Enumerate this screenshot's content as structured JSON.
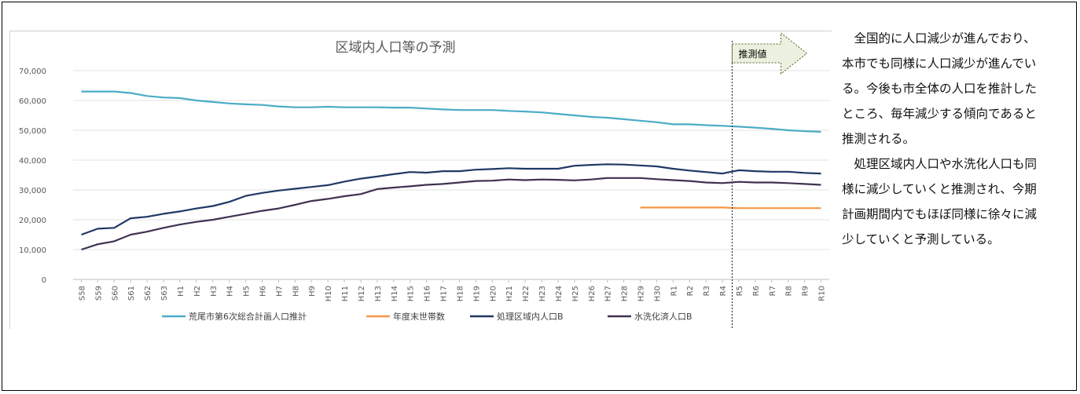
{
  "chart_data": {
    "type": "line",
    "title": "区域内人口等の予測",
    "xlabel": "",
    "ylabel": "",
    "ylim": [
      0,
      70000
    ],
    "yticks": [
      0,
      10000,
      20000,
      30000,
      40000,
      50000,
      60000,
      70000
    ],
    "ytick_labels": [
      "0",
      "10,000",
      "20,000",
      "30,000",
      "40,000",
      "50,000",
      "60,000",
      "70,000"
    ],
    "grid": true,
    "legend": "bottom",
    "categories": [
      "S58",
      "S59",
      "S60",
      "S61",
      "S62",
      "S63",
      "H1",
      "H2",
      "H3",
      "H4",
      "H5",
      "H6",
      "H7",
      "H8",
      "H9",
      "H10",
      "H11",
      "H12",
      "H13",
      "H14",
      "H15",
      "H16",
      "H17",
      "H18",
      "H19",
      "H20",
      "H21",
      "H22",
      "H23",
      "H24",
      "H25",
      "H26",
      "H27",
      "H28",
      "H29",
      "H30",
      "R1",
      "R2",
      "R3",
      "R4",
      "R5",
      "R6",
      "R7",
      "R8",
      "R9",
      "R10"
    ],
    "series": [
      {
        "name": "荒尾市第6次総合計画人口推計",
        "color": "#4bacc6",
        "values": [
          63000,
          63000,
          63000,
          62500,
          61500,
          61000,
          60800,
          60000,
          59500,
          59000,
          58700,
          58500,
          58000,
          57700,
          57700,
          57900,
          57700,
          57700,
          57700,
          57600,
          57600,
          57300,
          57000,
          56800,
          56800,
          56800,
          56500,
          56300,
          56000,
          55500,
          55000,
          54500,
          54200,
          53700,
          53200,
          52700,
          52000,
          52000,
          51700,
          51500,
          51200,
          50900,
          50500,
          50000,
          49700,
          49500
        ]
      },
      {
        "name": "年度末世帯数",
        "color": "#f79646",
        "values": [
          null,
          null,
          null,
          null,
          null,
          null,
          null,
          null,
          null,
          null,
          null,
          null,
          null,
          null,
          null,
          null,
          null,
          null,
          null,
          null,
          null,
          null,
          null,
          null,
          null,
          null,
          null,
          null,
          null,
          null,
          null,
          null,
          null,
          null,
          24100,
          24100,
          24100,
          24100,
          24100,
          24100,
          23900,
          23900,
          23900,
          23900,
          23900,
          23900
        ]
      },
      {
        "name": "処理区域内人口B",
        "color": "#1f3864",
        "values": [
          15000,
          17000,
          17300,
          20500,
          21000,
          22000,
          22800,
          23800,
          24600,
          26000,
          28000,
          29000,
          29800,
          30400,
          31000,
          31600,
          32800,
          33800,
          34500,
          35300,
          36000,
          35800,
          36300,
          36300,
          36800,
          37000,
          37300,
          37100,
          37100,
          37100,
          38100,
          38400,
          38600,
          38500,
          38200,
          37900,
          37100,
          36500,
          36000,
          35500,
          36600,
          36300,
          36100,
          36100,
          35700,
          35500
        ]
      },
      {
        "name": "水洗化済人口B",
        "color": "#403151",
        "values": [
          10000,
          11800,
          12800,
          15000,
          16000,
          17300,
          18400,
          19300,
          20000,
          21000,
          22000,
          23000,
          23800,
          25000,
          26300,
          27000,
          27900,
          28600,
          30300,
          30800,
          31200,
          31700,
          32000,
          32500,
          33000,
          33100,
          33500,
          33300,
          33500,
          33400,
          33200,
          33500,
          34000,
          34000,
          34000,
          33600,
          33300,
          33000,
          32500,
          32300,
          32700,
          32500,
          32500,
          32300,
          32000,
          31700
        ]
      }
    ],
    "annotation": {
      "label": "推測値",
      "position_category": "R5"
    }
  },
  "side_text": {
    "paragraph1": "全国的に人口減少が進んでおり、本市でも同様に人口減少が進んでいる。今後も市全体の人口を推計したところ、毎年減少する傾向であると推測される。",
    "paragraph2": "処理区域内人口や水洗化人口も同様に減少していくと推測され、今期計画期間内でもほぼ同様に徐々に減少していくと予測している。"
  }
}
